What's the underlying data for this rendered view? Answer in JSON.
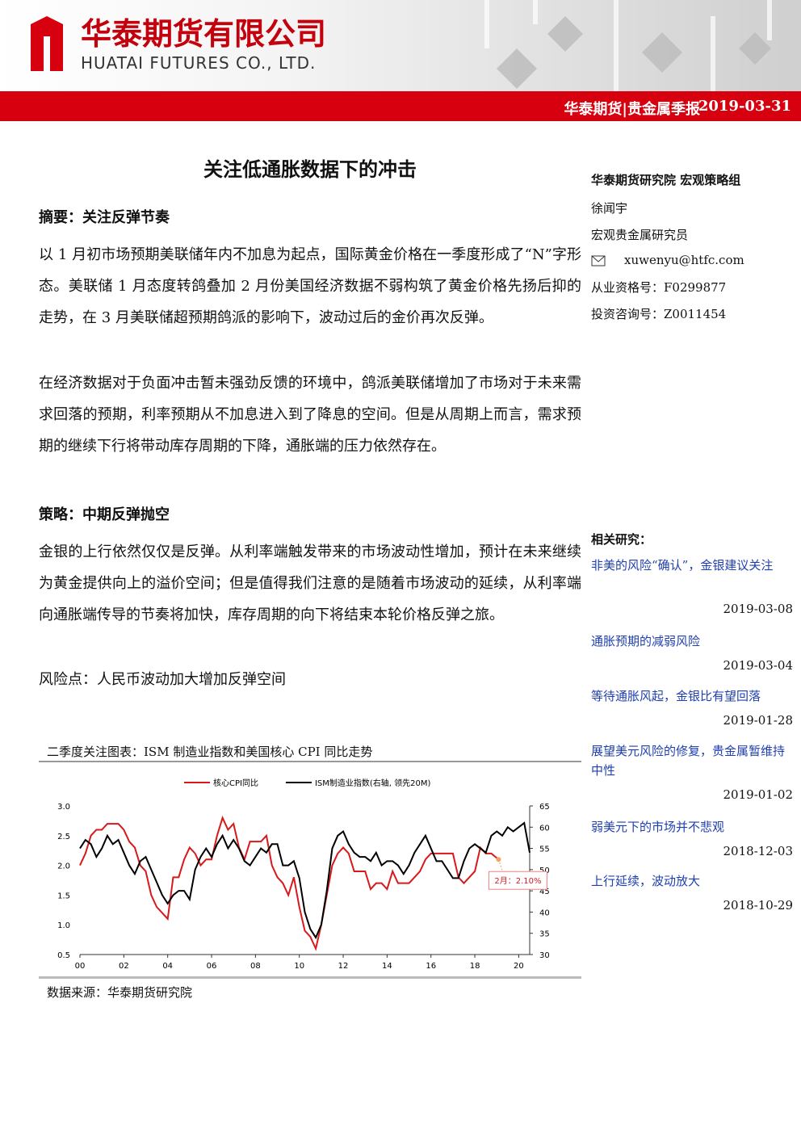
{
  "header": {
    "company": "华泰期货有限公司",
    "company_en": "HUATAI FUTURES CO., LTD.",
    "report": "华泰期货|贵金属季报",
    "date": "2019-03-31"
  },
  "title": "关注低通胀数据下的冲击",
  "abstract": {
    "heading": "摘要：关注反弹节奏",
    "paragraphs": [
      "以 1 月初市场预期美联储年内不加息为起点，国际黄金价格在一季度形成了“N”字形态。美联储 1 月态度转鸽叠加 2 月份美国经济数据不弱构筑了黄金价格先扬后抑的走势，在 3 月美联储超预期鸽派的影响下，波动过后的金价再次反弹。",
      "在经济数据对于负面冲击暂未强劲反馈的环境中，鸽派美联储增加了市场对于未来需求回落的预期，利率预期从不加息进入到了降息的空间。但是从周期上而言，需求预期的继续下行将带动库存周期的下降，通胀端的压力依然存在。"
    ]
  },
  "strategy": {
    "heading": "策略：中期反弹抛空",
    "paragraphs": [
      "金银的上行依然仅仅是反弹。从利率端触发带来的市场波动性增加，预计在未来继续为黄金提供向上的溢价空间；但是值得我们注意的是随着市场波动的延续，从利率端向通胀端传导的节奏将加快，库存周期的向下将结束本轮价格反弹之旅。"
    ],
    "risk": "风险点：人民币波动加大增加反弹空间"
  },
  "figure": {
    "caption": "二季度关注图表：ISM 制造业指数和美国核心 CPI 同比走势",
    "source": "数据来源：华泰期货研究院"
  },
  "chart_data": {
    "type": "line",
    "legend": "top",
    "annotation": "2月：2.10%",
    "xlim": [
      2000,
      2020.5
    ],
    "xticks": [
      {
        "value": 2000,
        "label": "00"
      },
      {
        "value": 2002,
        "label": "02"
      },
      {
        "value": 2004,
        "label": "04"
      },
      {
        "value": 2006,
        "label": "06"
      },
      {
        "value": 2008,
        "label": "08"
      },
      {
        "value": 2010,
        "label": "10"
      },
      {
        "value": 2012,
        "label": "12"
      },
      {
        "value": 2014,
        "label": "14"
      },
      {
        "value": 2016,
        "label": "16"
      },
      {
        "value": 2018,
        "label": "18"
      },
      {
        "value": 2020,
        "label": "20"
      }
    ],
    "ylim": [
      0.5,
      3
    ],
    "yticks": [
      0.5,
      {
        "value": 1,
        "label": "1.0"
      },
      1.5,
      {
        "value": 2,
        "label": "2.0"
      },
      2.5,
      {
        "value": 3,
        "label": "3.0"
      }
    ],
    "y2lim": [
      30,
      65
    ],
    "y2ticks": [
      30,
      35,
      40,
      45,
      50,
      55,
      60,
      65
    ],
    "series": [
      {
        "name": "核心CPI同比",
        "color": "#d7191c",
        "x": [
          2000,
          2000.25,
          2000.5,
          2000.75,
          2001,
          2001.25,
          2001.5,
          2001.75,
          2002,
          2002.25,
          2002.5,
          2002.75,
          2003,
          2003.25,
          2003.5,
          2003.75,
          2004,
          2004.25,
          2004.5,
          2004.75,
          2005,
          2005.25,
          2005.5,
          2005.75,
          2006,
          2006.25,
          2006.5,
          2006.75,
          2007,
          2007.25,
          2007.5,
          2007.75,
          2008,
          2008.25,
          2008.5,
          2008.75,
          2009,
          2009.25,
          2009.5,
          2009.75,
          2010,
          2010.25,
          2010.5,
          2010.75,
          2011,
          2011.25,
          2011.5,
          2011.75,
          2012,
          2012.25,
          2012.5,
          2012.75,
          2013,
          2013.25,
          2013.5,
          2013.75,
          2014,
          2014.25,
          2014.5,
          2014.75,
          2015,
          2015.25,
          2015.5,
          2015.75,
          2016,
          2016.25,
          2016.5,
          2016.75,
          2017,
          2017.25,
          2017.5,
          2017.75,
          2018,
          2018.25,
          2018.5,
          2018.75,
          2019.08
        ],
        "values": [
          2.0,
          2.2,
          2.5,
          2.6,
          2.6,
          2.7,
          2.7,
          2.7,
          2.6,
          2.4,
          2.3,
          2.0,
          1.9,
          1.5,
          1.3,
          1.2,
          1.1,
          1.8,
          1.8,
          2.1,
          2.3,
          2.2,
          2.0,
          2.1,
          2.1,
          2.5,
          2.8,
          2.6,
          2.7,
          2.3,
          2.1,
          2.4,
          2.4,
          2.4,
          2.5,
          2.0,
          1.8,
          1.7,
          1.5,
          1.8,
          1.3,
          0.9,
          0.8,
          0.6,
          1.0,
          1.5,
          2.0,
          2.2,
          2.3,
          2.2,
          1.9,
          1.9,
          1.9,
          1.6,
          1.7,
          1.7,
          1.6,
          1.9,
          1.7,
          1.7,
          1.7,
          1.8,
          1.9,
          2.1,
          2.2,
          2.2,
          2.2,
          2.2,
          2.2,
          1.8,
          1.7,
          1.8,
          1.9,
          2.3,
          2.2,
          2.2,
          2.1
        ]
      },
      {
        "name": "ISM制造业指数(右轴, 领先20M)",
        "color": "#000000",
        "axis": "y2",
        "x": [
          2000,
          2000.25,
          2000.5,
          2000.75,
          2001,
          2001.25,
          2001.5,
          2001.75,
          2002,
          2002.25,
          2002.5,
          2002.75,
          2003,
          2003.25,
          2003.5,
          2003.75,
          2004,
          2004.25,
          2004.5,
          2004.75,
          2005,
          2005.25,
          2005.5,
          2005.75,
          2006,
          2006.25,
          2006.5,
          2006.75,
          2007,
          2007.25,
          2007.5,
          2007.75,
          2008,
          2008.25,
          2008.5,
          2008.75,
          2009,
          2009.25,
          2009.5,
          2009.75,
          2010,
          2010.25,
          2010.5,
          2010.75,
          2011,
          2011.25,
          2011.5,
          2011.75,
          2012,
          2012.25,
          2012.5,
          2012.75,
          2013,
          2013.25,
          2013.5,
          2013.75,
          2014,
          2014.25,
          2014.5,
          2014.75,
          2015,
          2015.25,
          2015.5,
          2015.75,
          2016,
          2016.25,
          2016.5,
          2016.75,
          2017,
          2017.25,
          2017.5,
          2017.75,
          2018,
          2018.25,
          2018.5,
          2018.75,
          2019,
          2019.25,
          2019.5,
          2019.75,
          2020,
          2020.25,
          2020.5
        ],
        "values": [
          55,
          57,
          56,
          53,
          55,
          58,
          56,
          57,
          54,
          51,
          49,
          52,
          53,
          50,
          47,
          44,
          42,
          44,
          45,
          45,
          43,
          50,
          53,
          55,
          53,
          56,
          58,
          55,
          57,
          55,
          52,
          51,
          53,
          55,
          54,
          56,
          56,
          51,
          51,
          52,
          48,
          40,
          36,
          34,
          37,
          45,
          55,
          58,
          59,
          56,
          54,
          53,
          53,
          52,
          54,
          51,
          52,
          52,
          51,
          49,
          51,
          54,
          56,
          58,
          55,
          52,
          52,
          50,
          48,
          48,
          52,
          55,
          56,
          55,
          54,
          58,
          59,
          58,
          60,
          59,
          60,
          61,
          54
        ]
      }
    ]
  },
  "sidebar": {
    "org": "华泰期货研究院 宏观策略组",
    "author": "徐闻宇",
    "role": "宏观贵金属研究员",
    "email": "xuwenyu@htfc.com",
    "license": "从业资格号：F0299877",
    "consult": "投资咨询号：Z0011454",
    "related_heading": "相关研究：",
    "related": [
      {
        "title": "非美的风险“确认”，金银建议关注",
        "date": "2019-03-08"
      },
      {
        "title": "通胀预期的减弱风险",
        "date": "2019-03-04"
      },
      {
        "title": "等待通胀风起，金银比有望回落",
        "date": "2019-01-28"
      },
      {
        "title": "展望美元风险的修复，贵金属暂维持中性",
        "date": "2019-01-02"
      },
      {
        "title": "弱美元下的市场并不悲观",
        "date": "2018-12-03"
      },
      {
        "title": "上行延续，波动放大",
        "date": "2018-10-29"
      }
    ]
  }
}
